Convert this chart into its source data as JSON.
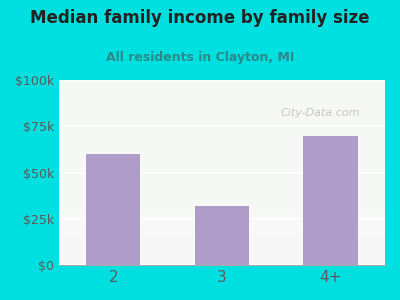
{
  "title": "Median family income by family size",
  "subtitle": "All residents in Clayton, MI",
  "categories": [
    "2",
    "3",
    "4+"
  ],
  "values": [
    60000,
    32000,
    70000
  ],
  "bar_color": "#b09cc8",
  "outer_bg": "#00e0e0",
  "title_color": "#222222",
  "subtitle_color": "#2a8a8a",
  "tick_color": "#5a5a5a",
  "watermark_text": "City-Data.com",
  "ylim": [
    0,
    100000
  ],
  "yticks": [
    0,
    25000,
    50000,
    75000,
    100000
  ],
  "ytick_labels": [
    "$0",
    "$25k",
    "$50k",
    "$75k",
    "$100k"
  ]
}
